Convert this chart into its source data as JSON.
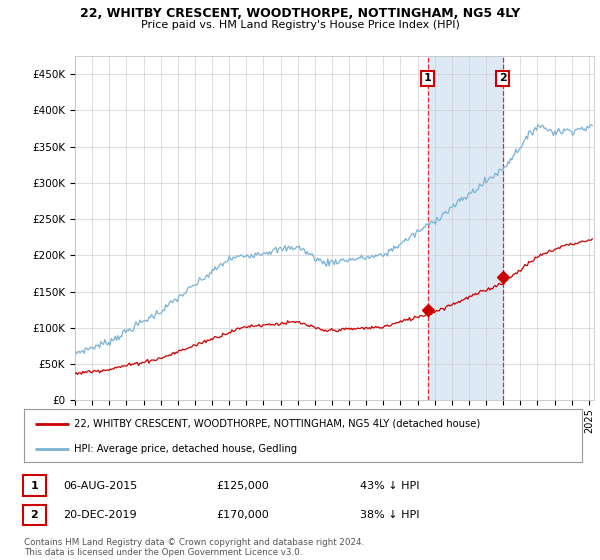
{
  "title1": "22, WHITBY CRESCENT, WOODTHORPE, NOTTINGHAM, NG5 4LY",
  "title2": "Price paid vs. HM Land Registry's House Price Index (HPI)",
  "legend_line1": "22, WHITBY CRESCENT, WOODTHORPE, NOTTINGHAM, NG5 4LY (detached house)",
  "legend_line2": "HPI: Average price, detached house, Gedling",
  "sale1_label": "1",
  "sale1_date": "06-AUG-2015",
  "sale1_price": "£125,000",
  "sale1_hpi": "43% ↓ HPI",
  "sale2_label": "2",
  "sale2_date": "20-DEC-2019",
  "sale2_price": "£170,000",
  "sale2_hpi": "38% ↓ HPI",
  "copyright": "Contains HM Land Registry data © Crown copyright and database right 2024.\nThis data is licensed under the Open Government Licence v3.0.",
  "ylim": [
    0,
    475000
  ],
  "yticks": [
    0,
    50000,
    100000,
    150000,
    200000,
    250000,
    300000,
    350000,
    400000,
    450000
  ],
  "ytick_labels": [
    "£0",
    "£50K",
    "£100K",
    "£150K",
    "£200K",
    "£250K",
    "£300K",
    "£350K",
    "£400K",
    "£450K"
  ],
  "hpi_color": "#7ab3d4",
  "price_color": "#cc0000",
  "sale1_x": 2015.58,
  "sale1_y": 125000,
  "sale2_x": 2019.97,
  "sale2_y": 170000,
  "vline1_x": 2015.58,
  "vline2_x": 2019.97,
  "background_color": "#ffffff",
  "plot_bg_color": "#ffffff",
  "shaded_color": "#ddeaf5",
  "xlim_left": 1995,
  "xlim_right": 2025.3
}
